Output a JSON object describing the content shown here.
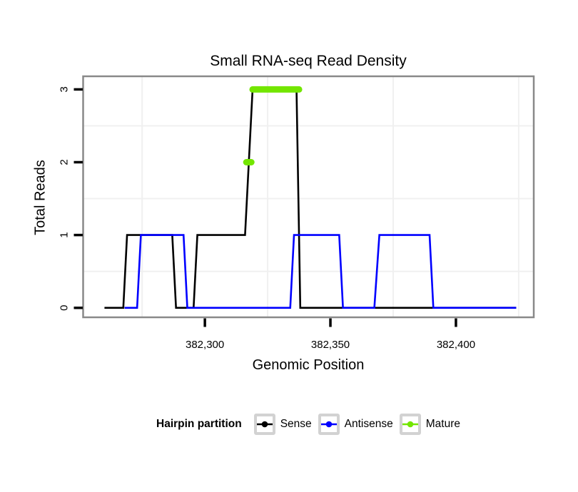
{
  "chart_data": {
    "type": "line",
    "title": "Small RNA-seq Read Density",
    "xlabel": "Genomic Position",
    "ylabel": "Total Reads",
    "xlim": [
      382251.5,
      382431
    ],
    "ylim": [
      -0.13,
      3.18
    ],
    "x_ticks": [
      {
        "value": 382300,
        "label": "382,300"
      },
      {
        "value": 382350,
        "label": "382,350"
      },
      {
        "value": 382400,
        "label": "382,400"
      }
    ],
    "y_ticks": [
      {
        "value": 0,
        "label": "0"
      },
      {
        "value": 1,
        "label": "1"
      },
      {
        "value": 2,
        "label": "2"
      },
      {
        "value": 3,
        "label": "3"
      }
    ],
    "grid": {
      "minor_x": [
        382275,
        382325,
        382375,
        382425
      ],
      "minor_y": [
        0.5,
        1.5,
        2.5
      ],
      "color": "#f0f0f0"
    },
    "panel": {
      "border_color": "#898989",
      "background": "#ffffff",
      "tick_color": "#000000"
    },
    "series": [
      {
        "name": "Sense",
        "color": "#000000",
        "draw": "polyline",
        "linewidth": 2.6,
        "points": [
          [
            382260,
            0
          ],
          [
            382267.5,
            0
          ],
          [
            382269,
            1
          ],
          [
            382287,
            1
          ],
          [
            382288.5,
            0
          ],
          [
            382295.5,
            0
          ],
          [
            382297,
            1
          ],
          [
            382316,
            1
          ],
          [
            382317.5,
            2
          ],
          [
            382319,
            3
          ],
          [
            382336.5,
            3
          ],
          [
            382338,
            0
          ],
          [
            382424,
            0
          ]
        ]
      },
      {
        "name": "Antisense",
        "color": "#0000ff",
        "draw": "polyline",
        "linewidth": 2.6,
        "points": [
          [
            382268,
            0
          ],
          [
            382273,
            0
          ],
          [
            382274.5,
            1
          ],
          [
            382291.5,
            1
          ],
          [
            382293,
            0
          ],
          [
            382334,
            0
          ],
          [
            382335.5,
            1
          ],
          [
            382353.5,
            1
          ],
          [
            382355,
            0
          ],
          [
            382367.5,
            0
          ],
          [
            382369.5,
            1
          ],
          [
            382389.5,
            1
          ],
          [
            382391,
            0
          ],
          [
            382424,
            0
          ]
        ]
      },
      {
        "name": "Mature",
        "color": "#73e600",
        "draw": "segments",
        "linewidth": 9,
        "segments": [
          {
            "x1": 382316.5,
            "x2": 382318.5,
            "y": 2
          },
          {
            "x1": 382319,
            "x2": 382337.5,
            "y": 3
          }
        ]
      }
    ],
    "legend": {
      "title": "Hairpin partition",
      "position": "bottom",
      "items": [
        {
          "label": "Sense",
          "color": "#000000"
        },
        {
          "label": "Antisense",
          "color": "#0000ff"
        },
        {
          "label": "Mature",
          "color": "#73e600"
        }
      ]
    }
  }
}
